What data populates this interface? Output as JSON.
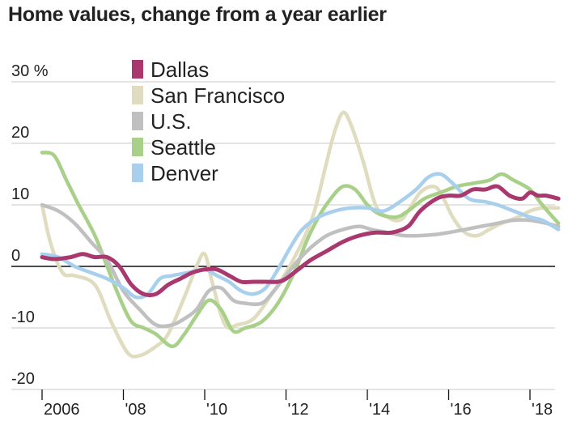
{
  "chart_data": {
    "type": "line",
    "title": "Home values, change from a year earlier",
    "y_unit_label": "30 %",
    "ylim": [
      -20,
      30
    ],
    "xlim": [
      2005.9,
      2018.7
    ],
    "grid": true,
    "legend_position": "top-left",
    "y_ticks": [
      {
        "value": 30,
        "label": "30 %"
      },
      {
        "value": 20,
        "label": "20"
      },
      {
        "value": 10,
        "label": "10"
      },
      {
        "value": 0,
        "label": "0"
      },
      {
        "value": -10,
        "label": "-10"
      },
      {
        "value": -20,
        "label": "-20"
      }
    ],
    "x_ticks": [
      {
        "value": 2006,
        "label": "2006"
      },
      {
        "value": 2008,
        "label": "'08"
      },
      {
        "value": 2010,
        "label": "'10"
      },
      {
        "value": 2012,
        "label": "'12"
      },
      {
        "value": 2014,
        "label": "'14"
      },
      {
        "value": 2016,
        "label": "'16"
      },
      {
        "value": 2018,
        "label": "'18"
      }
    ],
    "series": [
      {
        "name": "San Francisco",
        "color": "#e0dcc0",
        "points": [
          [
            2006.0,
            10
          ],
          [
            2006.2,
            4
          ],
          [
            2006.5,
            -1
          ],
          [
            2006.8,
            -1.5
          ],
          [
            2007.3,
            -3
          ],
          [
            2007.7,
            -9
          ],
          [
            2008.1,
            -14
          ],
          [
            2008.4,
            -14.5
          ],
          [
            2008.8,
            -13
          ],
          [
            2009.1,
            -11
          ],
          [
            2009.5,
            -5
          ],
          [
            2009.8,
            0
          ],
          [
            2010.0,
            2
          ],
          [
            2010.2,
            -3
          ],
          [
            2010.5,
            -9.5
          ],
          [
            2010.8,
            -9.5
          ],
          [
            2011.2,
            -8.5
          ],
          [
            2011.6,
            -5
          ],
          [
            2012.0,
            -1
          ],
          [
            2012.4,
            4
          ],
          [
            2012.7,
            9
          ],
          [
            2013.0,
            17
          ],
          [
            2013.2,
            22
          ],
          [
            2013.4,
            25
          ],
          [
            2013.6,
            23
          ],
          [
            2013.9,
            17
          ],
          [
            2014.2,
            10
          ],
          [
            2014.5,
            8
          ],
          [
            2014.8,
            7.5
          ],
          [
            2015.0,
            9
          ],
          [
            2015.3,
            12
          ],
          [
            2015.6,
            13
          ],
          [
            2015.8,
            12
          ],
          [
            2016.1,
            8
          ],
          [
            2016.4,
            5.5
          ],
          [
            2016.7,
            5
          ],
          [
            2017.0,
            6
          ],
          [
            2017.3,
            7
          ],
          [
            2017.7,
            8
          ],
          [
            2018.0,
            9
          ],
          [
            2018.3,
            9.5
          ],
          [
            2018.7,
            9.5
          ]
        ]
      },
      {
        "name": "Seattle",
        "color": "#a8d088",
        "points": [
          [
            2006.0,
            18.5
          ],
          [
            2006.3,
            18
          ],
          [
            2006.6,
            14
          ],
          [
            2006.9,
            10
          ],
          [
            2007.3,
            5
          ],
          [
            2007.6,
            0
          ],
          [
            2007.9,
            -5
          ],
          [
            2008.2,
            -9
          ],
          [
            2008.5,
            -10
          ],
          [
            2008.8,
            -11
          ],
          [
            2009.2,
            -13
          ],
          [
            2009.5,
            -11
          ],
          [
            2009.8,
            -8
          ],
          [
            2010.1,
            -5.5
          ],
          [
            2010.4,
            -7
          ],
          [
            2010.7,
            -10.5
          ],
          [
            2011.0,
            -10
          ],
          [
            2011.4,
            -9
          ],
          [
            2011.8,
            -6
          ],
          [
            2012.2,
            -1
          ],
          [
            2012.5,
            4
          ],
          [
            2012.8,
            8
          ],
          [
            2013.1,
            11
          ],
          [
            2013.4,
            13
          ],
          [
            2013.7,
            12.5
          ],
          [
            2014.0,
            10
          ],
          [
            2014.3,
            8.5
          ],
          [
            2014.7,
            8
          ],
          [
            2015.0,
            9
          ],
          [
            2015.4,
            11
          ],
          [
            2015.8,
            12
          ],
          [
            2016.2,
            13
          ],
          [
            2016.6,
            13.5
          ],
          [
            2017.0,
            14
          ],
          [
            2017.3,
            15
          ],
          [
            2017.6,
            14
          ],
          [
            2018.0,
            12.5
          ],
          [
            2018.3,
            10
          ],
          [
            2018.7,
            7
          ]
        ]
      },
      {
        "name": "U.S.",
        "color": "#c0c0c0",
        "points": [
          [
            2006.0,
            10
          ],
          [
            2006.4,
            9
          ],
          [
            2006.8,
            7
          ],
          [
            2007.2,
            4
          ],
          [
            2007.6,
            1
          ],
          [
            2008.0,
            -4
          ],
          [
            2008.4,
            -7
          ],
          [
            2008.8,
            -9.5
          ],
          [
            2009.2,
            -9.5
          ],
          [
            2009.5,
            -8.5
          ],
          [
            2009.8,
            -7
          ],
          [
            2010.1,
            -4
          ],
          [
            2010.4,
            -3.5
          ],
          [
            2010.7,
            -5.5
          ],
          [
            2011.0,
            -6
          ],
          [
            2011.4,
            -6
          ],
          [
            2011.7,
            -4
          ],
          [
            2012.0,
            -1.5
          ],
          [
            2012.3,
            1
          ],
          [
            2012.6,
            3
          ],
          [
            2013.0,
            5
          ],
          [
            2013.4,
            6
          ],
          [
            2013.8,
            6.5
          ],
          [
            2014.1,
            6
          ],
          [
            2014.5,
            5.5
          ],
          [
            2014.9,
            5
          ],
          [
            2015.3,
            5
          ],
          [
            2015.7,
            5.2
          ],
          [
            2016.0,
            5.5
          ],
          [
            2016.4,
            6
          ],
          [
            2016.8,
            6.5
          ],
          [
            2017.2,
            7
          ],
          [
            2017.6,
            7.5
          ],
          [
            2018.0,
            7.5
          ],
          [
            2018.4,
            7
          ],
          [
            2018.7,
            6.5
          ]
        ]
      },
      {
        "name": "Denver",
        "color": "#a8d0ec",
        "points": [
          [
            2006.0,
            2
          ],
          [
            2006.4,
            1.5
          ],
          [
            2006.8,
            0
          ],
          [
            2007.2,
            -1
          ],
          [
            2007.6,
            -2
          ],
          [
            2008.0,
            -3.5
          ],
          [
            2008.3,
            -5
          ],
          [
            2008.6,
            -4.5
          ],
          [
            2008.9,
            -2
          ],
          [
            2009.2,
            -1.5
          ],
          [
            2009.6,
            -1
          ],
          [
            2010.0,
            -0.5
          ],
          [
            2010.3,
            -1.5
          ],
          [
            2010.6,
            -2.5
          ],
          [
            2010.9,
            -4
          ],
          [
            2011.2,
            -4.5
          ],
          [
            2011.5,
            -3.5
          ],
          [
            2011.8,
            -0.5
          ],
          [
            2012.1,
            3
          ],
          [
            2012.4,
            6
          ],
          [
            2012.8,
            8
          ],
          [
            2013.2,
            9
          ],
          [
            2013.6,
            9.5
          ],
          [
            2014.0,
            9.5
          ],
          [
            2014.4,
            9
          ],
          [
            2014.8,
            10.5
          ],
          [
            2015.2,
            12.5
          ],
          [
            2015.5,
            14.5
          ],
          [
            2015.8,
            15
          ],
          [
            2016.1,
            13.5
          ],
          [
            2016.5,
            11
          ],
          [
            2016.9,
            10.5
          ],
          [
            2017.2,
            10
          ],
          [
            2017.6,
            9
          ],
          [
            2018.0,
            8
          ],
          [
            2018.3,
            7.5
          ],
          [
            2018.7,
            6
          ]
        ]
      },
      {
        "name": "Dallas",
        "color": "#a8386e",
        "points": [
          [
            2006.0,
            1.5
          ],
          [
            2006.3,
            1.2
          ],
          [
            2006.7,
            1.5
          ],
          [
            2007.0,
            2
          ],
          [
            2007.3,
            1.5
          ],
          [
            2007.6,
            1.5
          ],
          [
            2007.9,
            0
          ],
          [
            2008.2,
            -3
          ],
          [
            2008.5,
            -4.5
          ],
          [
            2008.8,
            -4.5
          ],
          [
            2009.1,
            -3
          ],
          [
            2009.4,
            -2
          ],
          [
            2009.7,
            -1
          ],
          [
            2010.0,
            -0.5
          ],
          [
            2010.3,
            -0.5
          ],
          [
            2010.6,
            -1.5
          ],
          [
            2010.9,
            -2.5
          ],
          [
            2011.2,
            -2.5
          ],
          [
            2011.5,
            -2.5
          ],
          [
            2011.8,
            -2.5
          ],
          [
            2012.0,
            -2
          ],
          [
            2012.3,
            -0.5
          ],
          [
            2012.6,
            1
          ],
          [
            2013.0,
            2.5
          ],
          [
            2013.4,
            4
          ],
          [
            2013.8,
            5
          ],
          [
            2014.2,
            5.5
          ],
          [
            2014.6,
            5.5
          ],
          [
            2015.0,
            6.5
          ],
          [
            2015.3,
            9
          ],
          [
            2015.7,
            11
          ],
          [
            2016.0,
            11.5
          ],
          [
            2016.3,
            11.5
          ],
          [
            2016.6,
            12.5
          ],
          [
            2016.9,
            12.5
          ],
          [
            2017.2,
            13
          ],
          [
            2017.5,
            11.5
          ],
          [
            2017.8,
            11
          ],
          [
            2018.0,
            12
          ],
          [
            2018.2,
            11.5
          ],
          [
            2018.4,
            11.5
          ],
          [
            2018.7,
            11
          ]
        ]
      }
    ],
    "legend": [
      {
        "name": "Dallas",
        "color": "#a8386e"
      },
      {
        "name": "San Francisco",
        "color": "#e0dcc0"
      },
      {
        "name": "U.S.",
        "color": "#c0c0c0"
      },
      {
        "name": "Seattle",
        "color": "#a8d088"
      },
      {
        "name": "Denver",
        "color": "#a8d0ec"
      }
    ]
  }
}
